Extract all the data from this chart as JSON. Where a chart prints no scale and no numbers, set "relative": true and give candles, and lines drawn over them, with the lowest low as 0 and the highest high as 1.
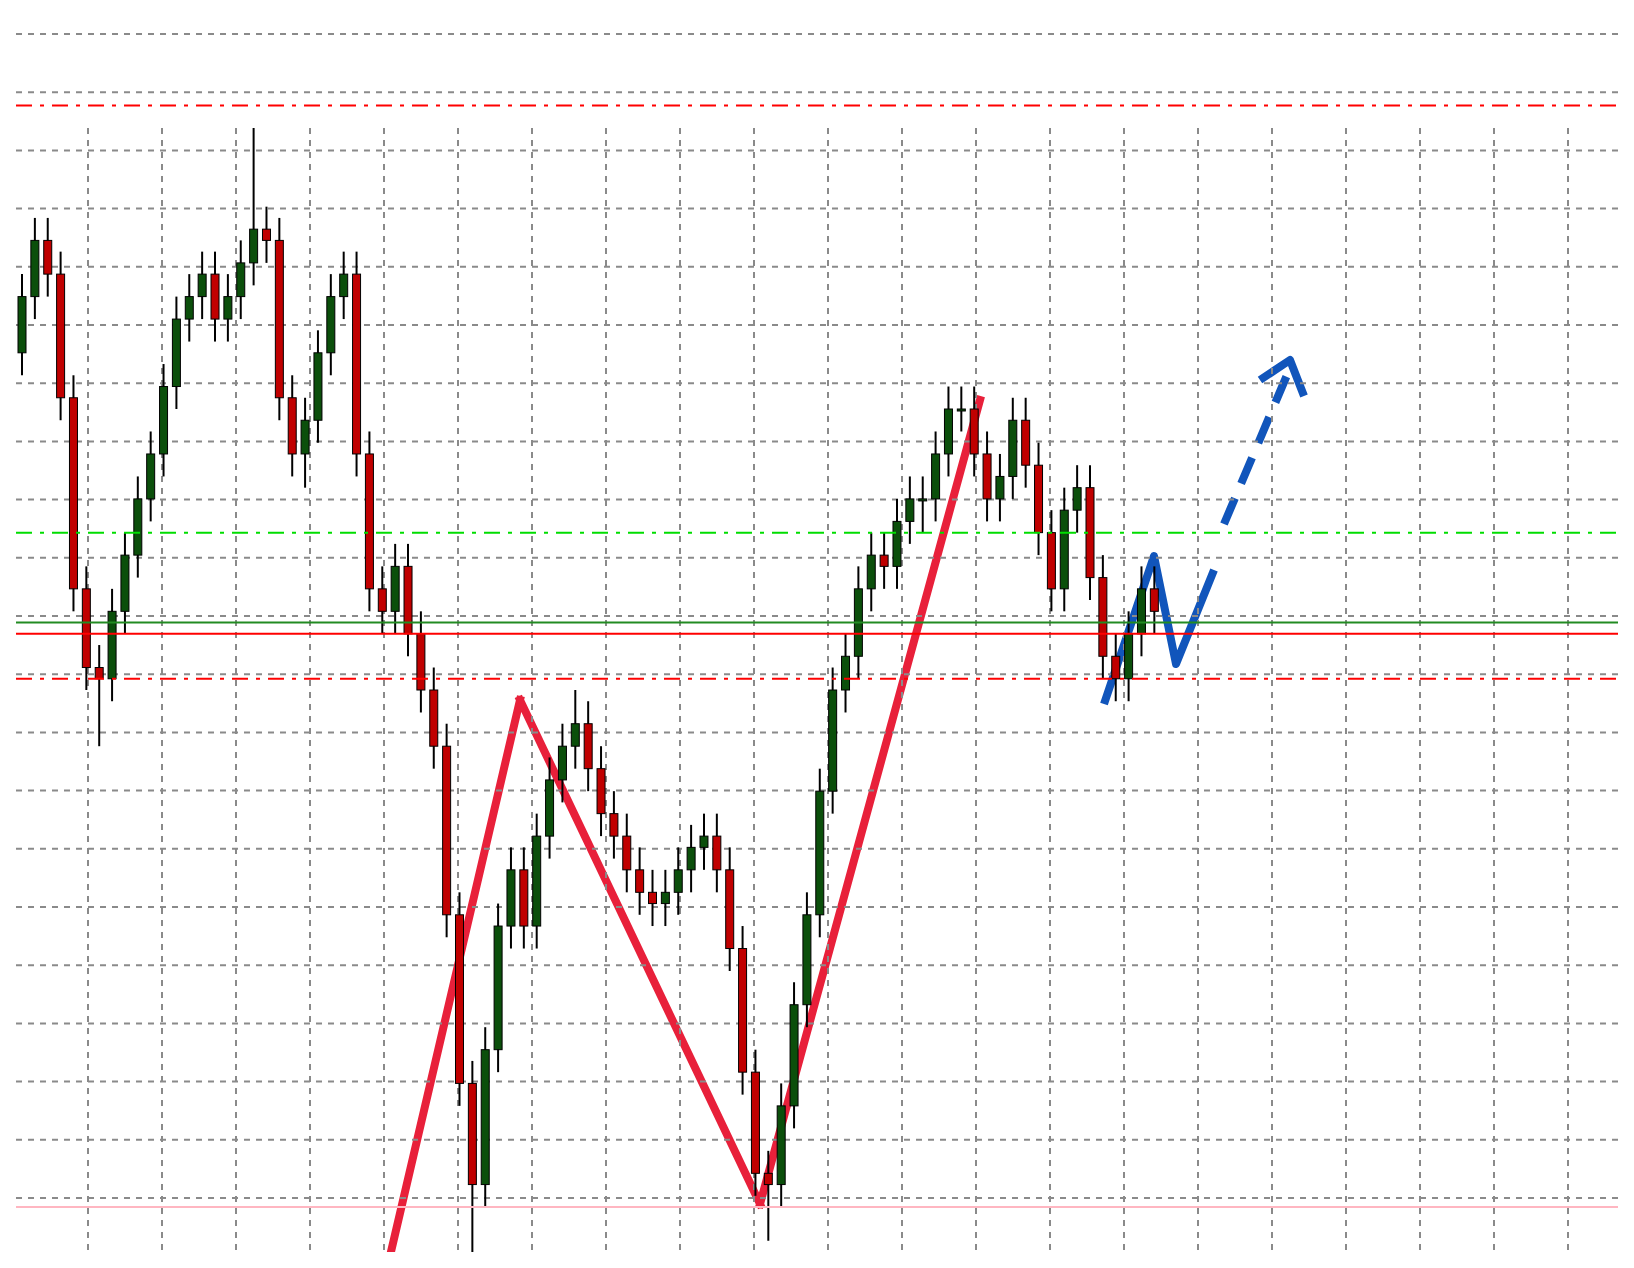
{
  "chart_data": {
    "type": "candlestick",
    "relative": true,
    "grid": true,
    "categories": [
      null,
      null,
      null,
      null,
      null,
      null,
      null,
      null,
      null,
      null,
      null,
      null,
      null,
      null,
      null,
      null,
      null,
      null,
      null,
      null,
      null,
      null,
      null,
      null,
      null,
      null,
      null,
      null,
      null,
      null,
      null,
      null,
      null,
      null,
      null,
      null,
      null,
      null,
      null,
      null,
      null,
      null,
      null,
      null,
      null,
      null,
      null,
      null,
      null,
      null,
      null,
      null,
      null,
      null,
      null,
      null,
      null,
      null,
      null,
      null,
      null,
      null,
      null,
      null,
      null,
      null,
      null,
      null,
      null,
      null,
      null,
      null,
      null,
      null,
      null,
      null,
      null,
      null,
      null,
      null,
      null,
      null,
      null,
      null,
      null,
      null,
      null,
      null,
      null
    ],
    "ohlc": [
      [
        0.8,
        0.87,
        0.78,
        0.85
      ],
      [
        0.85,
        0.92,
        0.83,
        0.9
      ],
      [
        0.9,
        0.92,
        0.85,
        0.87
      ],
      [
        0.87,
        0.89,
        0.74,
        0.76
      ],
      [
        0.76,
        0.78,
        0.57,
        0.59
      ],
      [
        0.59,
        0.61,
        0.5,
        0.52
      ],
      [
        0.52,
        0.54,
        0.45,
        0.51
      ],
      [
        0.51,
        0.59,
        0.49,
        0.57
      ],
      [
        0.57,
        0.64,
        0.55,
        0.62
      ],
      [
        0.62,
        0.69,
        0.6,
        0.67
      ],
      [
        0.67,
        0.73,
        0.65,
        0.71
      ],
      [
        0.71,
        0.79,
        0.69,
        0.77
      ],
      [
        0.77,
        0.85,
        0.75,
        0.83
      ],
      [
        0.83,
        0.87,
        0.81,
        0.85
      ],
      [
        0.85,
        0.89,
        0.83,
        0.87
      ],
      [
        0.87,
        0.89,
        0.81,
        0.83
      ],
      [
        0.83,
        0.87,
        0.81,
        0.85
      ],
      [
        0.85,
        0.9,
        0.83,
        0.88
      ],
      [
        0.88,
        1.0,
        0.86,
        0.91
      ],
      [
        0.91,
        0.93,
        0.88,
        0.9
      ],
      [
        0.9,
        0.92,
        0.74,
        0.76
      ],
      [
        0.76,
        0.78,
        0.69,
        0.71
      ],
      [
        0.71,
        0.76,
        0.68,
        0.74
      ],
      [
        0.74,
        0.82,
        0.72,
        0.8
      ],
      [
        0.8,
        0.87,
        0.78,
        0.85
      ],
      [
        0.85,
        0.89,
        0.83,
        0.87
      ],
      [
        0.87,
        0.89,
        0.69,
        0.71
      ],
      [
        0.71,
        0.73,
        0.57,
        0.59
      ],
      [
        0.59,
        0.61,
        0.55,
        0.57
      ],
      [
        0.57,
        0.63,
        0.55,
        0.61
      ],
      [
        0.61,
        0.63,
        0.53,
        0.55
      ],
      [
        0.55,
        0.57,
        0.48,
        0.5
      ],
      [
        0.5,
        0.52,
        0.43,
        0.45
      ],
      [
        0.45,
        0.47,
        0.28,
        0.3
      ],
      [
        0.3,
        0.32,
        0.13,
        0.15
      ],
      [
        0.15,
        0.17,
        0.0,
        0.06
      ],
      [
        0.06,
        0.2,
        0.04,
        0.18
      ],
      [
        0.18,
        0.31,
        0.16,
        0.29
      ],
      [
        0.29,
        0.36,
        0.27,
        0.34
      ],
      [
        0.34,
        0.36,
        0.27,
        0.29
      ],
      [
        0.29,
        0.39,
        0.27,
        0.37
      ],
      [
        0.37,
        0.44,
        0.35,
        0.42
      ],
      [
        0.42,
        0.47,
        0.4,
        0.45
      ],
      [
        0.45,
        0.5,
        0.43,
        0.47
      ],
      [
        0.47,
        0.49,
        0.41,
        0.43
      ],
      [
        0.43,
        0.45,
        0.37,
        0.39
      ],
      [
        0.39,
        0.41,
        0.35,
        0.37
      ],
      [
        0.37,
        0.39,
        0.32,
        0.34
      ],
      [
        0.34,
        0.36,
        0.3,
        0.32
      ],
      [
        0.32,
        0.34,
        0.29,
        0.31
      ],
      [
        0.31,
        0.34,
        0.29,
        0.32
      ],
      [
        0.32,
        0.36,
        0.3,
        0.34
      ],
      [
        0.34,
        0.38,
        0.32,
        0.36
      ],
      [
        0.36,
        0.39,
        0.34,
        0.37
      ],
      [
        0.37,
        0.39,
        0.32,
        0.34
      ],
      [
        0.34,
        0.36,
        0.25,
        0.27
      ],
      [
        0.27,
        0.29,
        0.14,
        0.16
      ],
      [
        0.16,
        0.18,
        0.05,
        0.07
      ],
      [
        0.07,
        0.09,
        0.01,
        0.06
      ],
      [
        0.06,
        0.15,
        0.04,
        0.13
      ],
      [
        0.13,
        0.24,
        0.11,
        0.22
      ],
      [
        0.22,
        0.32,
        0.2,
        0.3
      ],
      [
        0.3,
        0.43,
        0.28,
        0.41
      ],
      [
        0.41,
        0.52,
        0.39,
        0.5
      ],
      [
        0.5,
        0.55,
        0.48,
        0.53
      ],
      [
        0.53,
        0.61,
        0.51,
        0.59
      ],
      [
        0.59,
        0.64,
        0.57,
        0.62
      ],
      [
        0.62,
        0.64,
        0.59,
        0.61
      ],
      [
        0.61,
        0.67,
        0.59,
        0.65
      ],
      [
        0.65,
        0.69,
        0.63,
        0.67
      ],
      [
        0.67,
        0.69,
        0.64,
        0.67
      ],
      [
        0.67,
        0.73,
        0.65,
        0.71
      ],
      [
        0.71,
        0.77,
        0.69,
        0.75
      ],
      [
        0.75,
        0.77,
        0.73,
        0.75
      ],
      [
        0.75,
        0.77,
        0.69,
        0.71
      ],
      [
        0.71,
        0.73,
        0.65,
        0.67
      ],
      [
        0.67,
        0.71,
        0.65,
        0.69
      ],
      [
        0.69,
        0.76,
        0.67,
        0.74
      ],
      [
        0.74,
        0.76,
        0.68,
        0.7
      ],
      [
        0.7,
        0.72,
        0.62,
        0.64
      ],
      [
        0.64,
        0.66,
        0.57,
        0.59
      ],
      [
        0.59,
        0.68,
        0.57,
        0.66
      ],
      [
        0.66,
        0.7,
        0.64,
        0.68
      ],
      [
        0.68,
        0.7,
        0.58,
        0.6
      ],
      [
        0.6,
        0.62,
        0.51,
        0.53
      ],
      [
        0.53,
        0.55,
        0.49,
        0.51
      ],
      [
        0.51,
        0.57,
        0.49,
        0.55
      ],
      [
        0.55,
        0.61,
        0.53,
        0.59
      ],
      [
        0.59,
        0.61,
        0.55,
        0.57
      ]
    ],
    "ref_lines": [
      {
        "axis": "y",
        "value": 1.02,
        "color": "#ff0000",
        "line_style": "dashed"
      },
      {
        "axis": "y",
        "value": 0.64,
        "color": "#00dd00",
        "line_style": "dashed"
      },
      {
        "axis": "y",
        "value": 0.56,
        "color": "#228b22",
        "line_style": "solid"
      },
      {
        "axis": "y",
        "value": 0.55,
        "color": "#ff0000",
        "line_style": "solid"
      },
      {
        "axis": "y",
        "value": 0.51,
        "color": "#ff0000",
        "line_style": "dashed"
      },
      {
        "axis": "y",
        "value": 0.04,
        "color": "#ffb6c1",
        "line_style": "solid"
      }
    ]
  }
}
